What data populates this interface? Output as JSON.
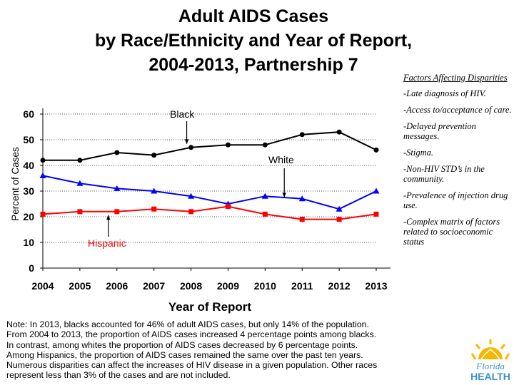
{
  "title": {
    "line1": "Adult AIDS Cases",
    "line2": "by Race/Ethnicity and Year of Report,",
    "line3": "2004-2013, Partnership 7"
  },
  "factors": {
    "heading": "Factors Affecting Disparities",
    "items": [
      "-Late diagnosis of HIV.",
      "-Access to/acceptance of care.",
      "-Delayed prevention messages.",
      "-Stigma.",
      "-Non-HIV STD’s in the community.",
      "-Prevalence of injection drug use.",
      "-Complex matrix of factors related to socioeconomic status"
    ]
  },
  "chart_data": {
    "type": "line",
    "title": "Adult AIDS Cases by Race/Ethnicity and Year of Report, 2004-2013, Partnership 7",
    "xlabel": "Year of Report",
    "ylabel": "Percent of Cases",
    "x": [
      "2004",
      "2005",
      "2006",
      "2007",
      "2008",
      "2009",
      "2010",
      "2011",
      "2012",
      "2013"
    ],
    "ylim": [
      0,
      60
    ],
    "yticks": [
      0,
      10,
      20,
      30,
      40,
      50,
      60
    ],
    "grid": true,
    "series": [
      {
        "name": "Black",
        "color": "#000000",
        "marker": "circle",
        "values": [
          42,
          42,
          45,
          44,
          47,
          48,
          48,
          52,
          53,
          46
        ]
      },
      {
        "name": "White",
        "color": "#0000ff",
        "marker": "triangle",
        "values": [
          36,
          33,
          31,
          30,
          28,
          25,
          28,
          27,
          23,
          30
        ]
      },
      {
        "name": "Hispanic",
        "color": "#ff0000",
        "marker": "square",
        "values": [
          21,
          22,
          22,
          23,
          22,
          24,
          21,
          19,
          19,
          21
        ]
      }
    ],
    "annotations": [
      {
        "text": "Black",
        "series": "Black",
        "point_year": "2008"
      },
      {
        "text": "White",
        "series": "White",
        "point_year": "2011"
      },
      {
        "text": "Hispanic",
        "series": "Hispanic",
        "point_year": "2006"
      }
    ]
  },
  "note": {
    "lines": [
      "Note:  In 2013, blacks accounted for 46% of adult AIDS cases, but only 14% of the population.",
      "From 2004 to 2013, the proportion of AIDS cases increased 4 percentage points among blacks.",
      "In contrast, among whites the proportion of AIDS cases decreased by 6 percentage points.",
      "Among Hispanics, the proportion of AIDS cases remained the same over the past ten years.",
      "Numerous disparities can affect the increases of HIV disease in a given population. Other races",
      "represent less than 3% of the cases and are not included."
    ]
  },
  "logo": {
    "line1": "Florida",
    "line2": "HEALTH"
  },
  "colors": {
    "logo_sun": "#f5b800",
    "logo_text": "#3a8fd0",
    "grid": "#555555"
  }
}
